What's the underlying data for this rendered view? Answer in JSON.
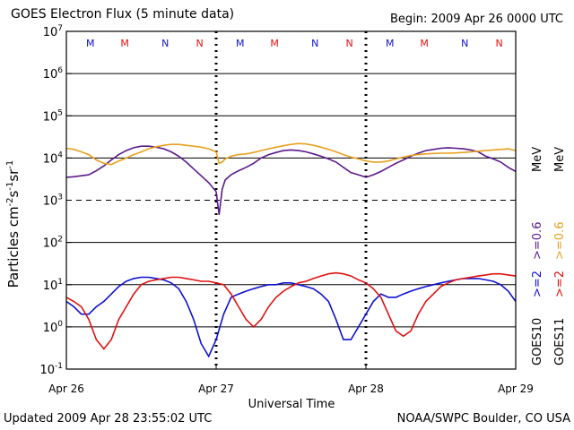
{
  "header": {
    "title": "GOES Electron Flux (5 minute data)",
    "begin": "Begin: 2009 Apr 26 0000 UTC"
  },
  "footer": {
    "updated": "Updated 2009 Apr 28 23:55:02 UTC",
    "credit": "NOAA/SWPC Boulder, CO USA"
  },
  "chart_data": {
    "type": "line",
    "title": "GOES Electron Flux (5 minute data)",
    "xlabel": "Universal Time",
    "ylabel": "Particles cm-2s-1sr-1",
    "yscale": "log",
    "xlim": [
      0,
      3
    ],
    "ylim": [
      0.1,
      10000000
    ],
    "grid": true,
    "x_ticks": [
      {
        "label": "Apr 26",
        "day": 0
      },
      {
        "label": "Apr 27",
        "day": 1
      },
      {
        "label": "Apr 28",
        "day": 2
      },
      {
        "label": "Apr 29",
        "day": 3
      }
    ],
    "y_ticks": [
      {
        "base": "10",
        "exp": "-1",
        "value": 0.1
      },
      {
        "base": "10",
        "exp": "0",
        "value": 1
      },
      {
        "base": "10",
        "exp": "1",
        "value": 10
      },
      {
        "base": "10",
        "exp": "2",
        "value": 100
      },
      {
        "base": "10",
        "exp": "3",
        "value": 1000
      },
      {
        "base": "10",
        "exp": "4",
        "value": 10000
      },
      {
        "base": "10",
        "exp": "5",
        "value": 100000
      },
      {
        "base": "10",
        "exp": "6",
        "value": 1000000
      },
      {
        "base": "10",
        "exp": "7",
        "value": 10000000
      }
    ],
    "mn_markers": [
      {
        "label": "M",
        "day": 0.16,
        "color": "#1010d0"
      },
      {
        "label": "M",
        "day": 0.39,
        "color": "#e01010"
      },
      {
        "label": "N",
        "day": 0.66,
        "color": "#1010d0"
      },
      {
        "label": "N",
        "day": 0.89,
        "color": "#e01010"
      },
      {
        "label": "M",
        "day": 1.16,
        "color": "#1010d0"
      },
      {
        "label": "M",
        "day": 1.39,
        "color": "#e01010"
      },
      {
        "label": "N",
        "day": 1.66,
        "color": "#1010d0"
      },
      {
        "label": "N",
        "day": 1.89,
        "color": "#e01010"
      },
      {
        "label": "M",
        "day": 2.16,
        "color": "#1010d0"
      },
      {
        "label": "M",
        "day": 2.39,
        "color": "#e01010"
      },
      {
        "label": "N",
        "day": 2.66,
        "color": "#1010d0"
      },
      {
        "label": "N",
        "day": 2.89,
        "color": "#e01010"
      }
    ],
    "legend": {
      "placement": "right",
      "columns": [
        {
          "color": "#1010d0",
          "text": ">=2",
          "key": "GOES10"
        },
        {
          "color": "#e01010",
          "text": ">=2",
          "key": "GOES11"
        }
      ],
      "columns_upper": [
        {
          "color": "#5b1a8a",
          "text": ">=0.6",
          "unit": "MeV"
        },
        {
          "color": "#e8a020",
          "text": ">=0.6",
          "unit": "MeV"
        }
      ]
    },
    "series": [
      {
        "name": "GOES10 >=0.6 MeV",
        "color": "#5b1a8a",
        "x": [
          0,
          0.05,
          0.1,
          0.15,
          0.2,
          0.25,
          0.3,
          0.35,
          0.4,
          0.45,
          0.5,
          0.55,
          0.6,
          0.65,
          0.7,
          0.75,
          0.8,
          0.85,
          0.9,
          0.95,
          1.0,
          1.02,
          1.04,
          1.06,
          1.08,
          1.1,
          1.15,
          1.2,
          1.25,
          1.3,
          1.35,
          1.4,
          1.45,
          1.5,
          1.55,
          1.6,
          1.65,
          1.7,
          1.75,
          1.8,
          1.85,
          1.9,
          1.95,
          2.0,
          2.05,
          2.1,
          2.15,
          2.2,
          2.25,
          2.3,
          2.35,
          2.4,
          2.45,
          2.5,
          2.55,
          2.6,
          2.65,
          2.7,
          2.75,
          2.8,
          2.85,
          2.9,
          2.95,
          3.0
        ],
        "y": [
          3500,
          3600,
          3800,
          4000,
          5000,
          6500,
          9000,
          12000,
          15000,
          17500,
          19000,
          19000,
          18000,
          16500,
          14000,
          11000,
          8000,
          5500,
          3800,
          2600,
          1600,
          450,
          1800,
          3000,
          3500,
          4000,
          5000,
          6000,
          7500,
          10000,
          12000,
          13500,
          15000,
          15500,
          15000,
          14000,
          12500,
          11000,
          9500,
          8000,
          6000,
          4500,
          4000,
          3500,
          4000,
          4800,
          6000,
          7500,
          9000,
          11000,
          13000,
          15000,
          16000,
          17000,
          17500,
          17000,
          16500,
          15500,
          14000,
          11000,
          9500,
          8000,
          6000,
          4800
        ]
      },
      {
        "name": "GOES11 >=0.6 MeV",
        "color": "#e8a020",
        "x": [
          0,
          0.05,
          0.1,
          0.15,
          0.2,
          0.25,
          0.3,
          0.35,
          0.4,
          0.45,
          0.5,
          0.55,
          0.6,
          0.65,
          0.7,
          0.75,
          0.8,
          0.85,
          0.9,
          0.95,
          1.0,
          1.02,
          1.04,
          1.06,
          1.1,
          1.15,
          1.2,
          1.25,
          1.3,
          1.35,
          1.4,
          1.45,
          1.5,
          1.55,
          1.6,
          1.65,
          1.7,
          1.75,
          1.8,
          1.85,
          1.9,
          1.95,
          2.0,
          2.05,
          2.1,
          2.15,
          2.2,
          2.25,
          2.3,
          2.35,
          2.4,
          2.45,
          2.5,
          2.55,
          2.6,
          2.65,
          2.7,
          2.75,
          2.8,
          2.85,
          2.9,
          2.95,
          3.0
        ],
        "y": [
          17000,
          16000,
          14000,
          12000,
          9000,
          7500,
          7000,
          8500,
          10000,
          12000,
          14000,
          16500,
          18500,
          20000,
          21000,
          21000,
          20000,
          19000,
          18000,
          16500,
          14000,
          7500,
          8000,
          9500,
          11000,
          12000,
          12500,
          13500,
          15000,
          16500,
          18000,
          19500,
          21000,
          22000,
          21500,
          20000,
          18000,
          16000,
          14000,
          12000,
          10500,
          9500,
          8500,
          8000,
          8000,
          8500,
          9500,
          10500,
          11500,
          12000,
          12500,
          12800,
          13000,
          13000,
          13200,
          13500,
          14000,
          14500,
          15000,
          15500,
          16000,
          16500,
          15000
        ]
      },
      {
        "name": "GOES10 >=2 MeV",
        "color": "#1010d0",
        "x": [
          0,
          0.05,
          0.1,
          0.15,
          0.2,
          0.25,
          0.3,
          0.35,
          0.4,
          0.45,
          0.5,
          0.55,
          0.6,
          0.65,
          0.7,
          0.75,
          0.8,
          0.85,
          0.9,
          0.95,
          1.0,
          1.05,
          1.1,
          1.15,
          1.2,
          1.25,
          1.3,
          1.35,
          1.4,
          1.45,
          1.5,
          1.55,
          1.6,
          1.65,
          1.7,
          1.75,
          1.8,
          1.85,
          1.9,
          1.95,
          2.0,
          2.05,
          2.1,
          2.15,
          2.2,
          2.25,
          2.3,
          2.35,
          2.4,
          2.45,
          2.5,
          2.55,
          2.6,
          2.65,
          2.7,
          2.75,
          2.8,
          2.85,
          2.9,
          2.95,
          3.0
        ],
        "y": [
          4,
          3,
          2,
          2,
          3,
          4,
          6,
          9,
          12,
          14,
          15,
          15,
          14,
          13,
          11,
          8,
          4,
          1.5,
          0.4,
          0.2,
          0.5,
          2,
          5,
          6,
          7,
          8,
          9,
          10,
          10,
          11,
          11,
          10,
          9,
          8,
          6,
          4,
          1.5,
          0.5,
          0.5,
          1,
          2,
          4,
          6,
          5,
          5,
          6,
          7,
          8,
          9,
          10,
          11,
          12,
          13,
          14,
          14,
          14,
          13,
          12,
          10,
          7,
          4
        ]
      },
      {
        "name": "GOES11 >=2 MeV",
        "color": "#e01010",
        "x": [
          0,
          0.05,
          0.1,
          0.15,
          0.2,
          0.25,
          0.3,
          0.35,
          0.4,
          0.45,
          0.5,
          0.55,
          0.6,
          0.65,
          0.7,
          0.75,
          0.8,
          0.85,
          0.9,
          0.95,
          1.0,
          1.05,
          1.1,
          1.15,
          1.2,
          1.25,
          1.3,
          1.35,
          1.4,
          1.45,
          1.5,
          1.55,
          1.6,
          1.65,
          1.7,
          1.75,
          1.8,
          1.85,
          1.9,
          1.95,
          2.0,
          2.05,
          2.1,
          2.15,
          2.2,
          2.25,
          2.3,
          2.35,
          2.4,
          2.45,
          2.5,
          2.55,
          2.6,
          2.65,
          2.7,
          2.75,
          2.8,
          2.85,
          2.9,
          2.95,
          3.0
        ],
        "y": [
          5,
          4,
          3,
          1.5,
          0.5,
          0.3,
          0.5,
          1.5,
          3,
          6,
          10,
          12,
          13,
          14,
          15,
          15,
          14,
          13,
          12,
          12,
          11,
          10,
          6,
          3,
          1.5,
          1,
          1.5,
          3,
          5,
          7,
          9,
          11,
          12,
          14,
          16,
          18,
          19,
          18,
          16,
          13,
          11,
          8,
          5,
          2,
          0.8,
          0.6,
          0.8,
          2,
          4,
          6,
          9,
          11,
          13,
          14,
          15,
          16,
          17,
          18,
          18,
          17,
          16
        ]
      }
    ]
  }
}
